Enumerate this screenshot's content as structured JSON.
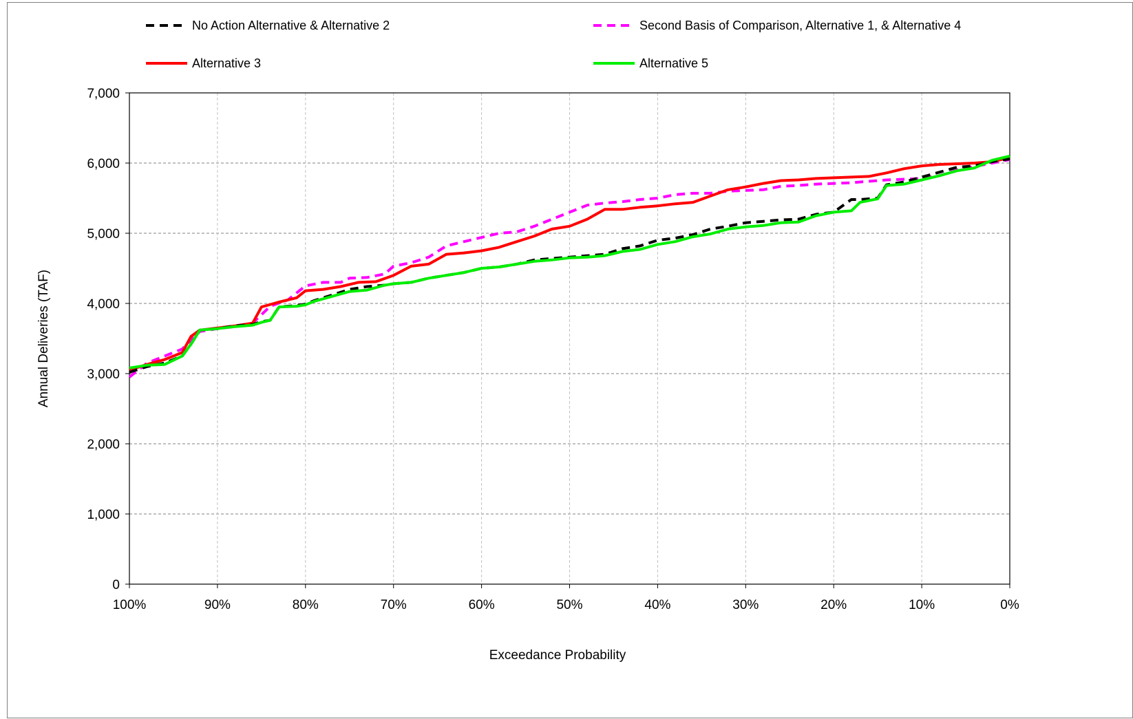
{
  "chart_data": {
    "type": "line",
    "title": "",
    "xlabel": "Exceedance Probability",
    "ylabel": "Annual Deliveries (TAF)",
    "xlim": [
      100,
      0
    ],
    "ylim": [
      0,
      7000
    ],
    "x_ticks": [
      100,
      90,
      80,
      70,
      60,
      50,
      40,
      30,
      20,
      10,
      0
    ],
    "x_tick_labels": [
      "100%",
      "90%",
      "80%",
      "70%",
      "60%",
      "50%",
      "40%",
      "30%",
      "20%",
      "10%",
      "0%"
    ],
    "y_ticks": [
      0,
      1000,
      2000,
      3000,
      4000,
      5000,
      6000,
      7000
    ],
    "y_tick_labels": [
      "0",
      "1,000",
      "2,000",
      "3,000",
      "4,000",
      "5,000",
      "6,000",
      "7,000"
    ],
    "grid": true,
    "legend_position": "top",
    "series": [
      {
        "name": "No Action Alternative & Alternative 2",
        "color": "#000000",
        "style": "dashed",
        "x": [
          100,
          98,
          96,
          94,
          93,
          92,
          90,
          88,
          86,
          85,
          84,
          83,
          81,
          80,
          79,
          77,
          75,
          73,
          71,
          70,
          68,
          66,
          64,
          62,
          60,
          58,
          56,
          54,
          52,
          50,
          48,
          46,
          44,
          42,
          40,
          38,
          36,
          34,
          32,
          30,
          28,
          26,
          24,
          22,
          20,
          18,
          17,
          15,
          14,
          12,
          10,
          8,
          6,
          4,
          2,
          0
        ],
        "y": [
          3020,
          3100,
          3150,
          3250,
          3420,
          3620,
          3640,
          3680,
          3700,
          3740,
          3760,
          3950,
          3970,
          3990,
          4040,
          4120,
          4200,
          4240,
          4260,
          4280,
          4300,
          4360,
          4400,
          4440,
          4500,
          4520,
          4560,
          4620,
          4640,
          4660,
          4680,
          4700,
          4780,
          4820,
          4900,
          4930,
          4980,
          5060,
          5100,
          5150,
          5170,
          5190,
          5200,
          5270,
          5300,
          5480,
          5480,
          5500,
          5690,
          5730,
          5800,
          5870,
          5940,
          5960,
          6020,
          6060
        ]
      },
      {
        "name": "Second Basis of Comparison, Alternative 1, & Alternative 4",
        "color": "#ff00ff",
        "style": "dashed",
        "x": [
          100,
          98,
          96,
          94,
          93,
          92,
          90,
          88,
          86,
          85,
          84,
          82,
          80,
          78,
          76,
          75,
          73,
          71,
          70,
          68,
          66,
          64,
          62,
          60,
          58,
          56,
          54,
          52,
          50,
          48,
          46,
          44,
          42,
          40,
          38,
          36,
          34,
          32,
          30,
          28,
          26,
          24,
          22,
          20,
          18,
          16,
          14,
          12,
          10,
          8,
          6,
          4,
          2,
          0
        ],
        "y": [
          2950,
          3150,
          3250,
          3350,
          3480,
          3600,
          3640,
          3670,
          3720,
          3840,
          3960,
          4050,
          4250,
          4300,
          4300,
          4360,
          4370,
          4420,
          4530,
          4580,
          4660,
          4820,
          4880,
          4940,
          5000,
          5020,
          5100,
          5200,
          5300,
          5400,
          5430,
          5450,
          5480,
          5500,
          5550,
          5570,
          5570,
          5600,
          5610,
          5620,
          5670,
          5680,
          5700,
          5710,
          5720,
          5740,
          5760,
          5770,
          5780,
          5820,
          5900,
          5950,
          6000,
          6050
        ]
      },
      {
        "name": "Alternative 3",
        "color": "#ff0000",
        "style": "solid",
        "x": [
          100,
          98,
          96,
          94,
          93,
          92,
          90,
          88,
          86,
          85,
          83,
          81,
          80,
          78,
          76,
          74,
          72,
          70,
          68,
          66,
          64,
          62,
          60,
          58,
          56,
          54,
          52,
          50,
          48,
          46,
          44,
          42,
          40,
          38,
          36,
          34,
          32,
          30,
          28,
          26,
          24,
          22,
          20,
          18,
          16,
          14,
          12,
          10,
          8,
          6,
          4,
          2,
          0
        ],
        "y": [
          3050,
          3130,
          3200,
          3300,
          3530,
          3620,
          3650,
          3680,
          3720,
          3950,
          4020,
          4080,
          4180,
          4200,
          4240,
          4300,
          4310,
          4400,
          4530,
          4560,
          4700,
          4720,
          4750,
          4800,
          4880,
          4960,
          5060,
          5100,
          5200,
          5340,
          5340,
          5370,
          5390,
          5420,
          5440,
          5530,
          5620,
          5660,
          5710,
          5750,
          5760,
          5780,
          5790,
          5800,
          5810,
          5860,
          5920,
          5960,
          5980,
          5990,
          6000,
          6020,
          6080
        ]
      },
      {
        "name": "Alternative 5",
        "color": "#00ee00",
        "style": "solid",
        "x": [
          100,
          98,
          96,
          94,
          93,
          92,
          90,
          88,
          86,
          85,
          84,
          83,
          81,
          80,
          79,
          77,
          75,
          73,
          71,
          70,
          68,
          66,
          64,
          62,
          60,
          58,
          56,
          54,
          52,
          50,
          48,
          46,
          44,
          42,
          40,
          38,
          36,
          34,
          32,
          30,
          28,
          26,
          24,
          22,
          20,
          18,
          17,
          15,
          14,
          12,
          10,
          8,
          6,
          4,
          2,
          0
        ],
        "y": [
          3080,
          3120,
          3130,
          3250,
          3420,
          3620,
          3640,
          3670,
          3690,
          3730,
          3760,
          3950,
          3960,
          3980,
          4030,
          4100,
          4170,
          4190,
          4260,
          4280,
          4300,
          4360,
          4400,
          4440,
          4500,
          4520,
          4560,
          4600,
          4620,
          4650,
          4660,
          4680,
          4740,
          4770,
          4840,
          4880,
          4950,
          4990,
          5060,
          5090,
          5110,
          5150,
          5160,
          5250,
          5300,
          5320,
          5440,
          5490,
          5680,
          5700,
          5760,
          5820,
          5890,
          5930,
          6040,
          6100
        ]
      }
    ]
  }
}
